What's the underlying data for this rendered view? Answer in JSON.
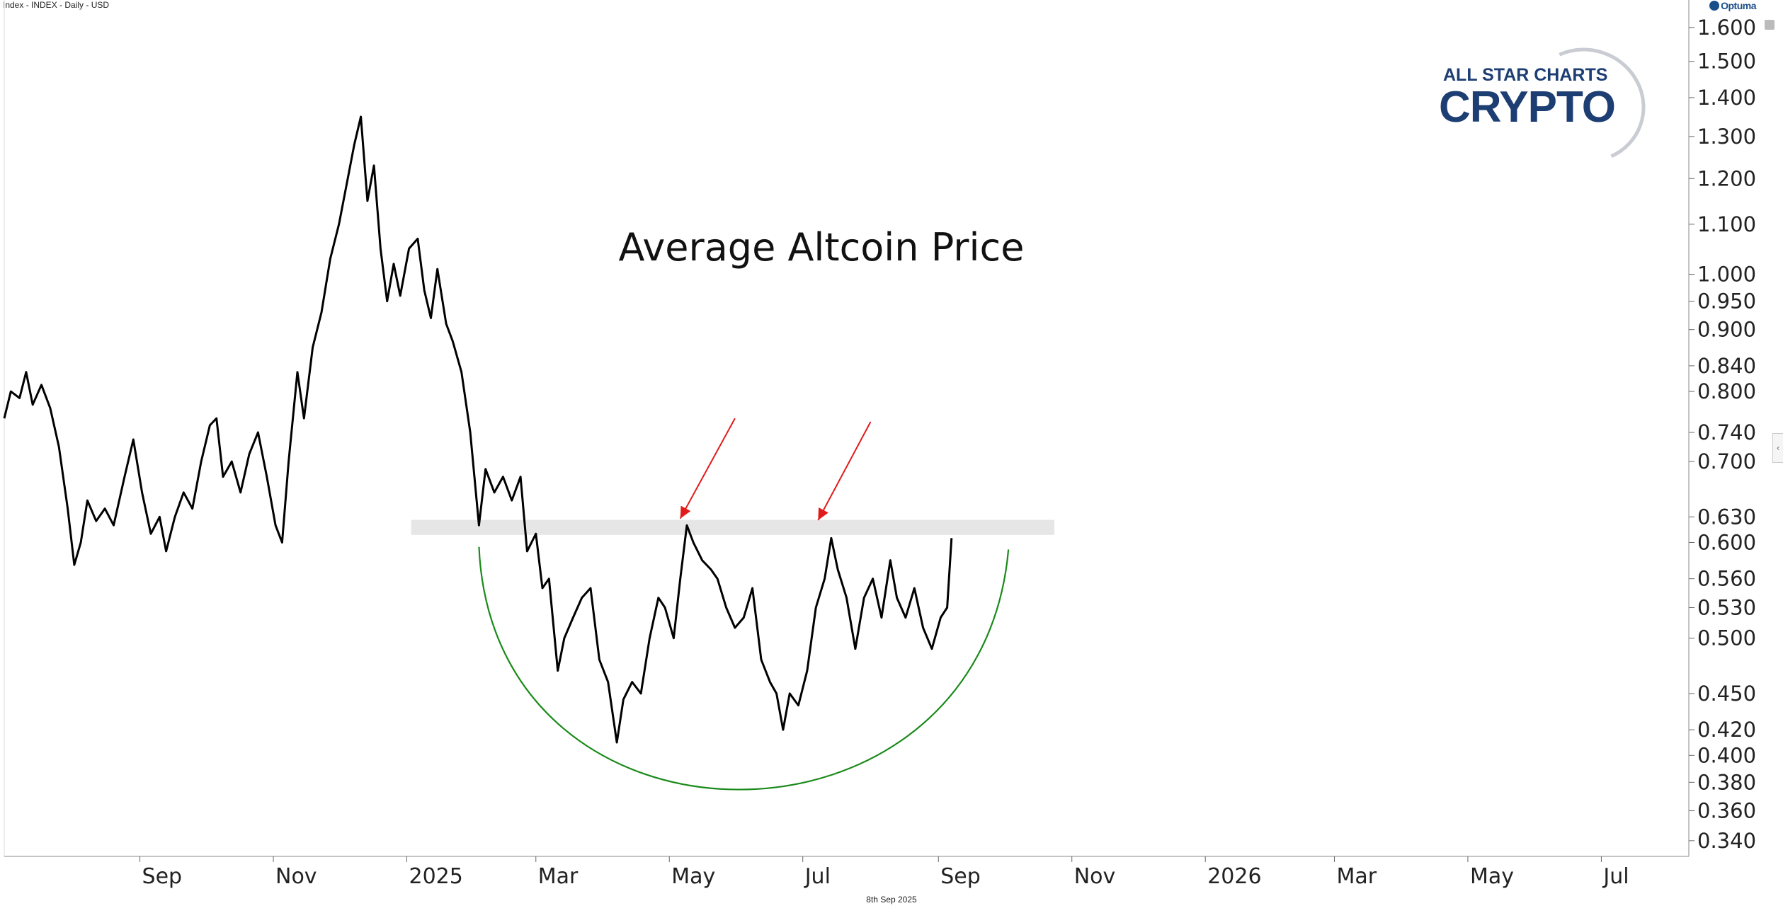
{
  "header": {
    "instrument": "Index - INDEX - Daily - USD"
  },
  "footer": {
    "date": "8th Sep 2025"
  },
  "branding": {
    "optuma": "Optuma",
    "logo_line1": "ALL STAR CHARTS",
    "logo_line2": "CRYPTO"
  },
  "colors": {
    "price": "#000000",
    "base_arc": "#1a8a1a",
    "arrows": "#e11b1b",
    "resistance_band": "#e6e6e6",
    "logo": "#1d3e73"
  },
  "chart_data": {
    "type": "line",
    "title": "Average Altcoin Price",
    "yscale": "log",
    "ylim": [
      0.33,
      1.65
    ],
    "xlim": [
      "2024-07-01",
      "2026-08-10"
    ],
    "y_ticks": [
      "1.600",
      "1.500",
      "1.400",
      "1.300",
      "1.200",
      "1.100",
      "1.000",
      "0.950",
      "0.900",
      "0.840",
      "0.800",
      "0.740",
      "0.700",
      "0.630",
      "0.600",
      "0.560",
      "0.530",
      "0.500",
      "0.450",
      "0.420",
      "0.400",
      "0.380",
      "0.360",
      "0.340"
    ],
    "x_ticks": [
      {
        "label": "Sep",
        "date": "2024-09-01"
      },
      {
        "label": "Nov",
        "date": "2024-11-01"
      },
      {
        "label": "2025",
        "date": "2025-01-01"
      },
      {
        "label": "Mar",
        "date": "2025-03-01"
      },
      {
        "label": "May",
        "date": "2025-05-01"
      },
      {
        "label": "Jul",
        "date": "2025-07-01"
      },
      {
        "label": "Sep",
        "date": "2025-09-01"
      },
      {
        "label": "Nov",
        "date": "2025-11-01"
      },
      {
        "label": "2026",
        "date": "2026-01-01"
      },
      {
        "label": "Mar",
        "date": "2026-03-01"
      },
      {
        "label": "May",
        "date": "2026-05-01"
      },
      {
        "label": "Jul",
        "date": "2026-07-01"
      }
    ],
    "series": [
      {
        "values": [
          [
            "2024-07-01",
            0.76
          ],
          [
            "2024-07-04",
            0.8
          ],
          [
            "2024-07-08",
            0.79
          ],
          [
            "2024-07-11",
            0.83
          ],
          [
            "2024-07-14",
            0.78
          ],
          [
            "2024-07-18",
            0.81
          ],
          [
            "2024-07-22",
            0.775
          ],
          [
            "2024-07-26",
            0.72
          ],
          [
            "2024-07-30",
            0.64
          ],
          [
            "2024-08-02",
            0.575
          ],
          [
            "2024-08-05",
            0.6
          ],
          [
            "2024-08-08",
            0.65
          ],
          [
            "2024-08-12",
            0.625
          ],
          [
            "2024-08-16",
            0.64
          ],
          [
            "2024-08-20",
            0.62
          ],
          [
            "2024-08-25",
            0.68
          ],
          [
            "2024-08-29",
            0.73
          ],
          [
            "2024-09-02",
            0.66
          ],
          [
            "2024-09-06",
            0.61
          ],
          [
            "2024-09-10",
            0.63
          ],
          [
            "2024-09-13",
            0.59
          ],
          [
            "2024-09-17",
            0.63
          ],
          [
            "2024-09-21",
            0.66
          ],
          [
            "2024-09-25",
            0.64
          ],
          [
            "2024-09-29",
            0.7
          ],
          [
            "2024-10-03",
            0.75
          ],
          [
            "2024-10-06",
            0.76
          ],
          [
            "2024-10-09",
            0.68
          ],
          [
            "2024-10-13",
            0.7
          ],
          [
            "2024-10-17",
            0.66
          ],
          [
            "2024-10-21",
            0.71
          ],
          [
            "2024-10-25",
            0.74
          ],
          [
            "2024-10-29",
            0.68
          ],
          [
            "2024-11-02",
            0.62
          ],
          [
            "2024-11-05",
            0.6
          ],
          [
            "2024-11-08",
            0.7
          ],
          [
            "2024-11-12",
            0.83
          ],
          [
            "2024-11-15",
            0.76
          ],
          [
            "2024-11-19",
            0.87
          ],
          [
            "2024-11-23",
            0.93
          ],
          [
            "2024-11-27",
            1.03
          ],
          [
            "2024-12-01",
            1.1
          ],
          [
            "2024-12-05",
            1.2
          ],
          [
            "2024-12-08",
            1.28
          ],
          [
            "2024-12-11",
            1.35
          ],
          [
            "2024-12-14",
            1.15
          ],
          [
            "2024-12-17",
            1.23
          ],
          [
            "2024-12-20",
            1.05
          ],
          [
            "2024-12-23",
            0.95
          ],
          [
            "2024-12-26",
            1.02
          ],
          [
            "2024-12-29",
            0.96
          ],
          [
            "2025-01-02",
            1.05
          ],
          [
            "2025-01-06",
            1.07
          ],
          [
            "2025-01-09",
            0.97
          ],
          [
            "2025-01-12",
            0.92
          ],
          [
            "2025-01-15",
            1.01
          ],
          [
            "2025-01-19",
            0.91
          ],
          [
            "2025-01-22",
            0.88
          ],
          [
            "2025-01-26",
            0.83
          ],
          [
            "2025-01-30",
            0.74
          ],
          [
            "2025-02-03",
            0.62
          ],
          [
            "2025-02-06",
            0.69
          ],
          [
            "2025-02-10",
            0.66
          ],
          [
            "2025-02-14",
            0.68
          ],
          [
            "2025-02-18",
            0.65
          ],
          [
            "2025-02-22",
            0.68
          ],
          [
            "2025-02-25",
            0.59
          ],
          [
            "2025-03-01",
            0.61
          ],
          [
            "2025-03-04",
            0.55
          ],
          [
            "2025-03-07",
            0.56
          ],
          [
            "2025-03-11",
            0.47
          ],
          [
            "2025-03-14",
            0.5
          ],
          [
            "2025-03-18",
            0.52
          ],
          [
            "2025-03-22",
            0.54
          ],
          [
            "2025-03-26",
            0.55
          ],
          [
            "2025-03-30",
            0.48
          ],
          [
            "2025-04-03",
            0.46
          ],
          [
            "2025-04-07",
            0.41
          ],
          [
            "2025-04-10",
            0.445
          ],
          [
            "2025-04-14",
            0.46
          ],
          [
            "2025-04-18",
            0.45
          ],
          [
            "2025-04-22",
            0.5
          ],
          [
            "2025-04-26",
            0.54
          ],
          [
            "2025-04-29",
            0.53
          ],
          [
            "2025-05-03",
            0.5
          ],
          [
            "2025-05-06",
            0.56
          ],
          [
            "2025-05-09",
            0.62
          ],
          [
            "2025-05-12",
            0.6
          ],
          [
            "2025-05-16",
            0.58
          ],
          [
            "2025-05-20",
            0.57
          ],
          [
            "2025-05-23",
            0.56
          ],
          [
            "2025-05-27",
            0.53
          ],
          [
            "2025-05-31",
            0.51
          ],
          [
            "2025-06-04",
            0.52
          ],
          [
            "2025-06-08",
            0.55
          ],
          [
            "2025-06-12",
            0.48
          ],
          [
            "2025-06-16",
            0.46
          ],
          [
            "2025-06-19",
            0.45
          ],
          [
            "2025-06-22",
            0.42
          ],
          [
            "2025-06-25",
            0.45
          ],
          [
            "2025-06-29",
            0.44
          ],
          [
            "2025-07-03",
            0.47
          ],
          [
            "2025-07-07",
            0.53
          ],
          [
            "2025-07-11",
            0.56
          ],
          [
            "2025-07-14",
            0.605
          ],
          [
            "2025-07-17",
            0.57
          ],
          [
            "2025-07-21",
            0.54
          ],
          [
            "2025-07-25",
            0.49
          ],
          [
            "2025-07-29",
            0.54
          ],
          [
            "2025-08-02",
            0.56
          ],
          [
            "2025-08-06",
            0.52
          ],
          [
            "2025-08-10",
            0.58
          ],
          [
            "2025-08-13",
            0.54
          ],
          [
            "2025-08-17",
            0.52
          ],
          [
            "2025-08-21",
            0.55
          ],
          [
            "2025-08-25",
            0.51
          ],
          [
            "2025-08-29",
            0.49
          ],
          [
            "2025-09-02",
            0.52
          ],
          [
            "2025-09-05",
            0.53
          ],
          [
            "2025-09-07",
            0.605
          ]
        ]
      }
    ],
    "annotations": {
      "resistance_band": [
        0.612,
        0.623
      ],
      "base_arc": {
        "start": [
          "2025-02-03",
          0.595
        ],
        "bottom": [
          "2025-05-28",
          0.378
        ],
        "end": [
          "2025-10-03",
          0.592
        ]
      },
      "arrows": [
        {
          "from": [
            "2025-05-31",
            0.76
          ],
          "to": [
            "2025-05-06",
            0.628
          ]
        },
        {
          "from": [
            "2025-08-01",
            0.755
          ],
          "to": [
            "2025-07-08",
            0.626
          ]
        }
      ]
    }
  }
}
